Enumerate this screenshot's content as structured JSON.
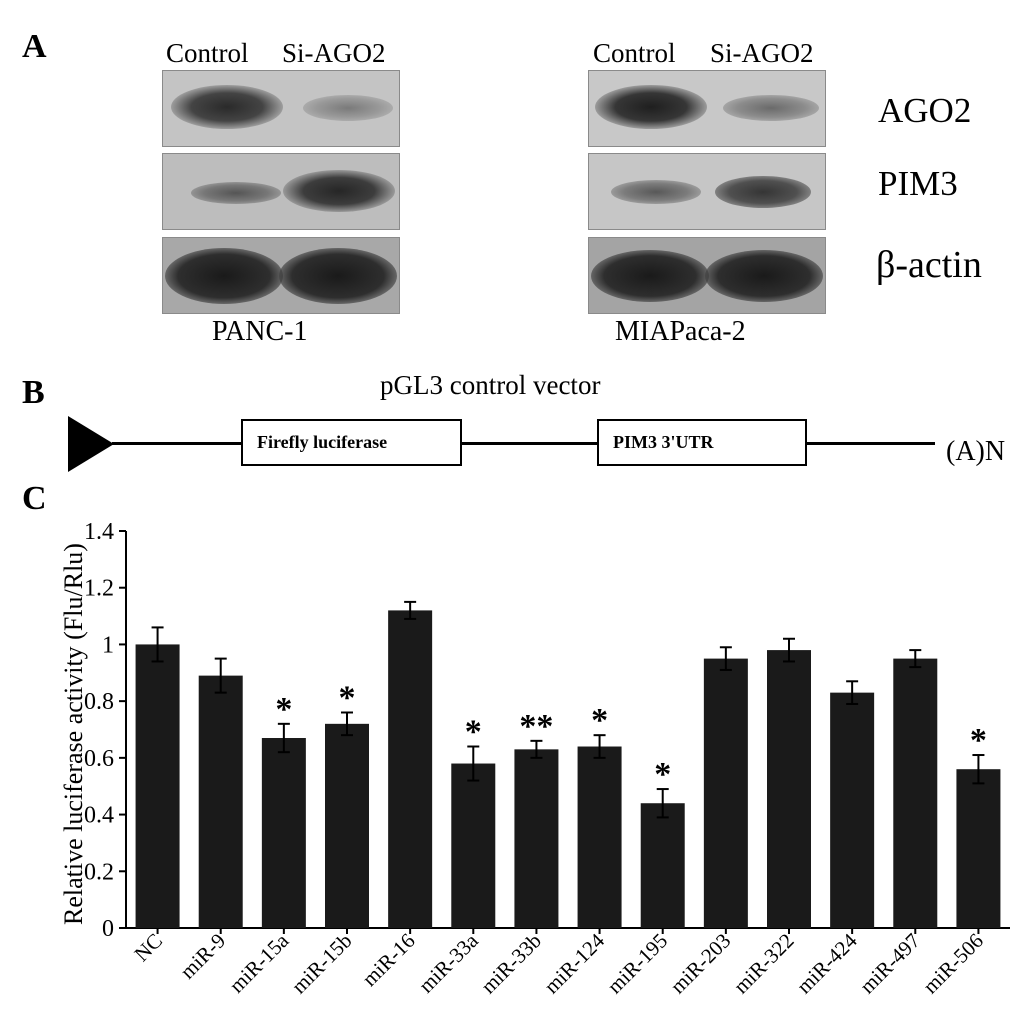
{
  "panelA": {
    "letter": "A",
    "left_blot": {
      "headers": [
        "Control",
        "Si-AGO2"
      ],
      "cell_line": "PANC-1"
    },
    "right_blot": {
      "headers": [
        "Control",
        "Si-AGO2"
      ],
      "cell_line": "MIAPaca-2"
    },
    "proteins": [
      "AGO2",
      "PIM3",
      "β-actin"
    ]
  },
  "panelB": {
    "letter": "B",
    "title": "pGL3 control vector",
    "box1": "Firefly luciferase",
    "box2": "PIM3 3'UTR",
    "tail": "(A)N"
  },
  "panelC": {
    "letter": "C",
    "chart_data": {
      "type": "bar",
      "categories": [
        "NC",
        "miR-9",
        "miR-15a",
        "miR-15b",
        "miR-16",
        "miR-33a",
        "miR-33b",
        "miR-124",
        "miR-195",
        "miR-203",
        "miR-322",
        "miR-424",
        "miR-497",
        "miR-506"
      ],
      "values": [
        1.0,
        0.89,
        0.67,
        0.72,
        1.12,
        0.58,
        0.63,
        0.64,
        0.44,
        0.95,
        0.98,
        0.83,
        0.95,
        0.56
      ],
      "errors": [
        0.06,
        0.06,
        0.05,
        0.04,
        0.03,
        0.06,
        0.03,
        0.04,
        0.05,
        0.04,
        0.04,
        0.04,
        0.03,
        0.05
      ],
      "significance": [
        "",
        "",
        "*",
        "*",
        "",
        "*",
        "**",
        "*",
        "*",
        "",
        "",
        "",
        "",
        "*"
      ],
      "ylabel": "Relative luciferase activity (Flu/Rlu)",
      "ylim": [
        0,
        1.4
      ],
      "yticks": [
        0,
        0.2,
        0.4,
        0.6,
        0.8,
        1,
        1.2,
        1.4
      ],
      "ytick_labels": [
        "0",
        "0.2",
        "0.4",
        "0.6",
        "0.8",
        "1",
        "1.2",
        "1.4"
      ],
      "bar_color": "#1a1a1a",
      "grid": false
    }
  }
}
